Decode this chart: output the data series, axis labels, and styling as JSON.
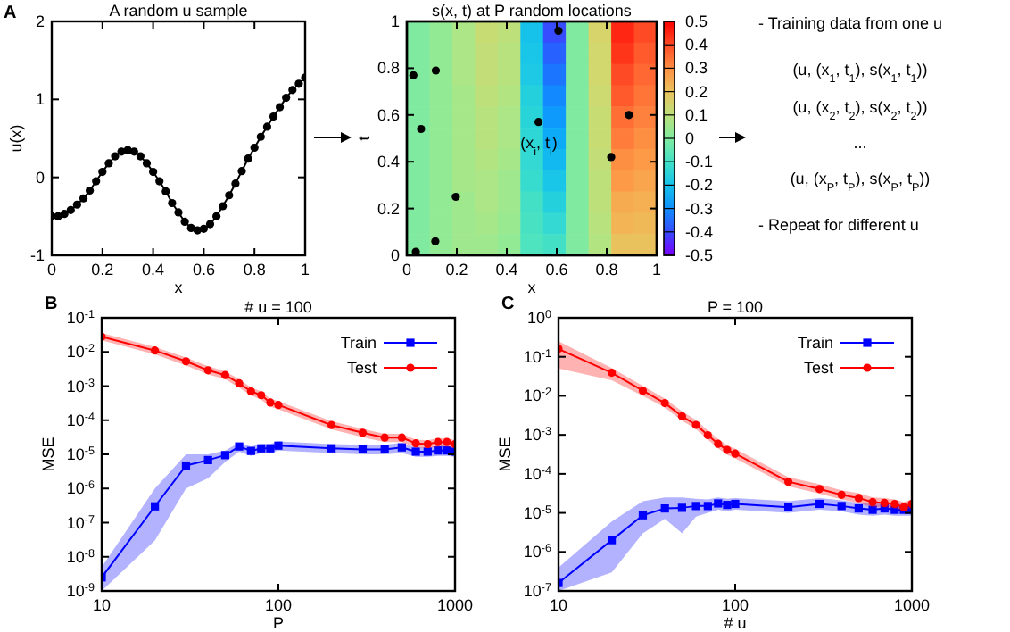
{
  "chart_data": [
    {
      "type": "line",
      "title": "A random u sample",
      "xlabel": "x",
      "ylabel": "u(x)",
      "annotations": [
        "A"
      ],
      "xlim": [
        0,
        1
      ],
      "ylim": [
        -1,
        2
      ],
      "xticks": [
        0,
        0.2,
        0.4,
        0.6,
        0.8,
        1
      ],
      "yticks": [
        -1,
        0,
        1,
        2
      ],
      "grid": false,
      "legend": false,
      "marker": "circle",
      "line_style": "solid",
      "series": [
        {
          "color": "#000000",
          "x": [
            0,
            0.025,
            0.05,
            0.075,
            0.1,
            0.125,
            0.15,
            0.175,
            0.2,
            0.225,
            0.25,
            0.275,
            0.3,
            0.325,
            0.35,
            0.375,
            0.4,
            0.425,
            0.45,
            0.475,
            0.5,
            0.525,
            0.55,
            0.575,
            0.6,
            0.625,
            0.65,
            0.675,
            0.7,
            0.725,
            0.75,
            0.775,
            0.8,
            0.825,
            0.85,
            0.875,
            0.9,
            0.925,
            0.95,
            0.975,
            1
          ],
          "values": [
            -0.5,
            -0.5,
            -0.47,
            -0.42,
            -0.35,
            -0.27,
            -0.17,
            -0.05,
            0.07,
            0.18,
            0.27,
            0.33,
            0.35,
            0.33,
            0.27,
            0.18,
            0.07,
            -0.05,
            -0.18,
            -0.33,
            -0.45,
            -0.57,
            -0.65,
            -0.68,
            -0.66,
            -0.6,
            -0.5,
            -0.37,
            -0.23,
            -0.08,
            0.08,
            0.24,
            0.38,
            0.52,
            0.65,
            0.78,
            0.9,
            1.02,
            1.12,
            1.2,
            1.28
          ]
        }
      ]
    },
    {
      "type": "heatmap",
      "title": "s(x, t) at P random locations",
      "xlabel": "x",
      "ylabel": "t",
      "clim": [
        -0.5,
        0.5
      ],
      "cticks": [
        -0.5,
        -0.4,
        -0.3,
        -0.2,
        -0.1,
        0,
        0.1,
        0.2,
        0.3,
        0.4,
        0.5
      ],
      "categories": [
        null,
        null,
        null,
        null,
        null,
        null,
        null,
        null,
        null,
        null,
        null
      ],
      "y_categories": [
        null,
        null,
        null,
        null,
        null,
        null,
        null,
        null,
        null,
        null,
        null
      ],
      "cells": [
        [
          0,
          0.03,
          0.07,
          0.12,
          0.1,
          -0.2,
          -0.4,
          0,
          0.15,
          0.45,
          0.4
        ],
        [
          0,
          0.03,
          0.07,
          0.11,
          0.09,
          -0.19,
          -0.37,
          0,
          0.14,
          0.43,
          0.38
        ],
        [
          0,
          0.03,
          0.07,
          0.11,
          0.09,
          -0.18,
          -0.34,
          0,
          0.14,
          0.4,
          0.36
        ],
        [
          0,
          0.03,
          0.06,
          0.1,
          0.08,
          -0.16,
          -0.31,
          0,
          0.13,
          0.38,
          0.34
        ],
        [
          0,
          0.03,
          0.06,
          0.09,
          0.07,
          -0.15,
          -0.28,
          0,
          0.12,
          0.35,
          0.32
        ],
        [
          0,
          0.03,
          0.06,
          0.09,
          0.07,
          -0.14,
          -0.25,
          0,
          0.12,
          0.33,
          0.3
        ],
        [
          0,
          0.03,
          0.06,
          0.08,
          0.06,
          -0.13,
          -0.22,
          0,
          0.11,
          0.3,
          0.28
        ],
        [
          0,
          0.03,
          0.06,
          0.07,
          0.05,
          -0.12,
          -0.19,
          0,
          0.1,
          0.28,
          0.26
        ],
        [
          0,
          0.03,
          0.05,
          0.07,
          0.05,
          -0.1,
          -0.16,
          0,
          0.1,
          0.25,
          0.24
        ],
        [
          0,
          0.03,
          0.05,
          0.06,
          0.04,
          -0.09,
          -0.13,
          0,
          0.09,
          0.23,
          0.22
        ],
        [
          0,
          0.03,
          0.05,
          0.05,
          0.03,
          -0.08,
          -0.1,
          0,
          0.08,
          0.2,
          0.2
        ]
      ]
    },
    {
      "type": "scatter",
      "xlim": [
        0,
        1
      ],
      "ylim": [
        0,
        1
      ],
      "xticks": [
        0,
        0.2,
        0.4,
        0.6,
        0.8,
        1
      ],
      "yticks": [
        0,
        0.2,
        0.4,
        0.6,
        0.8,
        1
      ],
      "annotations": [
        "(x$_{i}$, t$_{i}$)"
      ],
      "series": [
        {
          "color": "#000000",
          "marker": "circle",
          "x": [
            0.026,
            0.057,
            0.116,
            0.196,
            0.036,
            0.114,
            0.527,
            0.607,
            0.818,
            0.889
          ],
          "values": [
            0.77,
            0.54,
            0.79,
            0.25,
            0.015,
            0.06,
            0.57,
            0.96,
            0.42,
            0.6
          ]
        }
      ]
    },
    {
      "type": "other",
      "annotations": [
        "- Training data from one u",
        "(u, (x$_{1}$, t$_{1}$), s(x$_{1}$, t$_{1}$))",
        "(u, (x$_{2}$, t$_{2}$), s(x$_{2}$, t$_{2}$))",
        "...",
        "(u, (x$_{P}$, t$_{P}$), s(x$_{P}$, t$_{P}$))",
        "- Repeat for different u"
      ]
    },
    {
      "type": "line",
      "title": "# u = 100",
      "xlabel": "P",
      "ylabel": "MSE",
      "annotations": [
        "B"
      ],
      "log": "xy",
      "xlim": [
        10,
        1000
      ],
      "ylim": [
        1e-09,
        0.1
      ],
      "xticks": [
        10,
        100,
        1000
      ],
      "yticks": [
        {
          "value": 1e-09,
          "label": "10$^{-9}$"
        },
        {
          "value": 1e-08,
          "label": "10$^{-8}$"
        },
        {
          "value": 1e-07,
          "label": "10$^{-7}$"
        },
        {
          "value": 1e-06,
          "label": "10$^{-6}$"
        },
        {
          "value": 1e-05,
          "label": "10$^{-5}$"
        },
        {
          "value": 0.0001,
          "label": "10$^{-4}$"
        },
        {
          "value": 0.001,
          "label": "10$^{-3}$"
        },
        {
          "value": 0.01,
          "label": "10$^{-2}$"
        },
        {
          "value": 0.1,
          "label": "10$^{-1}$"
        }
      ],
      "grid": false,
      "legend": "top right",
      "line_style": "solid",
      "series": [
        {
          "name": "Train",
          "color": "#0000ff",
          "marker": "square",
          "x": [
            10,
            20,
            30,
            40,
            50,
            60,
            70,
            80,
            90,
            100,
            200,
            300,
            400,
            500,
            600,
            700,
            800,
            900,
            1000
          ],
          "values": [
            2.5e-09,
            3e-07,
            4.7e-06,
            6.8e-06,
            9.5e-06,
            1.7e-05,
            1.26e-05,
            1.5e-05,
            1.5e-05,
            1.8e-05,
            1.5e-05,
            1.4e-05,
            1.4e-05,
            1.6e-05,
            1.2e-05,
            1.2e-05,
            1.3e-05,
            1.3e-05,
            1.2e-05
          ],
          "lower": [
            1e-09,
            3e-08,
            1e-06,
            2e-06,
            6e-06,
            1.2e-05,
            9e-06,
            1.1e-05,
            1.1e-05,
            1.3e-05,
            1.1e-05,
            1e-05,
            1e-05,
            1.1e-05,
            8.5e-06,
            8.5e-06,
            9e-06,
            9e-06,
            8.5e-06
          ],
          "upper": [
            5e-09,
            1e-06,
            1e-05,
            1e-05,
            1.3e-05,
            2.2e-05,
            1.7e-05,
            2e-05,
            2e-05,
            2.4e-05,
            2e-05,
            1.9e-05,
            1.9e-05,
            2.2e-05,
            1.6e-05,
            1.6e-05,
            1.8e-05,
            1.8e-05,
            1.6e-05
          ]
        },
        {
          "name": "Test",
          "color": "#ff0000",
          "marker": "circle",
          "x": [
            10,
            20,
            30,
            40,
            50,
            60,
            70,
            80,
            90,
            100,
            200,
            300,
            400,
            500,
            600,
            700,
            800,
            900,
            1000
          ],
          "values": [
            0.028,
            0.011,
            0.0053,
            0.0029,
            0.0021,
            0.0012,
            0.0007,
            0.00054,
            0.00033,
            0.00028,
            7.2e-05,
            4.3e-05,
            3.1e-05,
            3.1e-05,
            2.1e-05,
            2e-05,
            2.3e-05,
            2.3e-05,
            2e-05
          ],
          "lower": [
            0.022,
            0.0085,
            0.004,
            0.0022,
            0.0016,
            0.0009,
            0.00053,
            0.0004,
            0.00025,
            0.00021,
            5.4e-05,
            3.2e-05,
            2.3e-05,
            2.3e-05,
            1.6e-05,
            1.5e-05,
            1.7e-05,
            1.7e-05,
            1.5e-05
          ],
          "upper": [
            0.036,
            0.014,
            0.0069,
            0.0038,
            0.0027,
            0.0016,
            0.00091,
            0.0007,
            0.00043,
            0.00036,
            9.4e-05,
            5.6e-05,
            4e-05,
            4e-05,
            2.7e-05,
            2.6e-05,
            3e-05,
            3e-05,
            2.6e-05
          ]
        }
      ]
    },
    {
      "type": "line",
      "title": "P = 100",
      "xlabel": "# u",
      "ylabel": "MSE",
      "annotations": [
        "C"
      ],
      "log": "xy",
      "xlim": [
        10,
        1000
      ],
      "ylim": [
        1e-07,
        1
      ],
      "xticks": [
        10,
        100,
        1000
      ],
      "yticks": [
        {
          "value": 1e-07,
          "label": "10$^{-7}$"
        },
        {
          "value": 1e-06,
          "label": "10$^{-6}$"
        },
        {
          "value": 1e-05,
          "label": "10$^{-5}$"
        },
        {
          "value": 0.0001,
          "label": "10$^{-4}$"
        },
        {
          "value": 0.001,
          "label": "10$^{-3}$"
        },
        {
          "value": 0.01,
          "label": "10$^{-2}$"
        },
        {
          "value": 0.1,
          "label": "10$^{-1}$"
        },
        {
          "value": 1,
          "label": "10$^{0}$"
        }
      ],
      "grid": false,
      "legend": "top right",
      "line_style": "solid",
      "series": [
        {
          "name": "Train",
          "color": "#0000ff",
          "marker": "square",
          "x": [
            10,
            20,
            30,
            40,
            50,
            60,
            70,
            80,
            90,
            100,
            200,
            300,
            400,
            500,
            600,
            700,
            800,
            900,
            1000
          ],
          "values": [
            1.6e-07,
            2e-06,
            8.7e-06,
            1.3e-05,
            1.35e-05,
            1.5e-05,
            1.5e-05,
            1.75e-05,
            1.6e-05,
            1.7e-05,
            1.4e-05,
            1.7e-05,
            1.5e-05,
            1.3e-05,
            1.2e-05,
            1.3e-05,
            1.2e-05,
            1.2e-05,
            1.2e-05
          ],
          "lower": [
            1e-07,
            3e-07,
            3e-06,
            7e-06,
            3e-06,
            8e-06,
            1e-05,
            1.2e-05,
            1.1e-05,
            1.2e-05,
            1e-05,
            1.2e-05,
            1.1e-05,
            9e-06,
            8.5e-06,
            9e-06,
            8.5e-06,
            8.5e-06,
            8.5e-06
          ],
          "upper": [
            4e-07,
            6e-06,
            2e-05,
            2.5e-05,
            2.5e-05,
            2.3e-05,
            2.2e-05,
            2.5e-05,
            2.3e-05,
            2.4e-05,
            2e-05,
            2.4e-05,
            2.1e-05,
            1.8e-05,
            1.7e-05,
            1.8e-05,
            1.7e-05,
            1.7e-05,
            1.7e-05
          ]
        },
        {
          "name": "Test",
          "color": "#ff0000",
          "marker": "circle",
          "x": [
            10,
            20,
            30,
            40,
            50,
            60,
            70,
            80,
            90,
            100,
            200,
            300,
            400,
            500,
            600,
            700,
            800,
            900,
            1000
          ],
          "values": [
            0.16,
            0.039,
            0.0135,
            0.0065,
            0.003,
            0.0018,
            0.00098,
            0.00059,
            0.00041,
            0.00033,
            6.3e-05,
            4.1e-05,
            2.9e-05,
            2.4e-05,
            1.9e-05,
            1.8e-05,
            1.7e-05,
            1.4e-05,
            1.7e-05
          ],
          "lower": [
            0.05,
            0.025,
            0.01,
            0.005,
            0.0023,
            0.0014,
            0.00075,
            0.00045,
            0.00031,
            0.00025,
            4.8e-05,
            3.1e-05,
            2.2e-05,
            1.8e-05,
            1.4e-05,
            1.4e-05,
            1.3e-05,
            1.1e-05,
            1.3e-05
          ],
          "upper": [
            0.25,
            0.052,
            0.018,
            0.0085,
            0.004,
            0.0024,
            0.0013,
            0.00078,
            0.00054,
            0.00044,
            8.3e-05,
            5.4e-05,
            3.8e-05,
            3.2e-05,
            2.5e-05,
            2.4e-05,
            2.2e-05,
            1.9e-05,
            2.2e-05
          ]
        }
      ]
    }
  ]
}
